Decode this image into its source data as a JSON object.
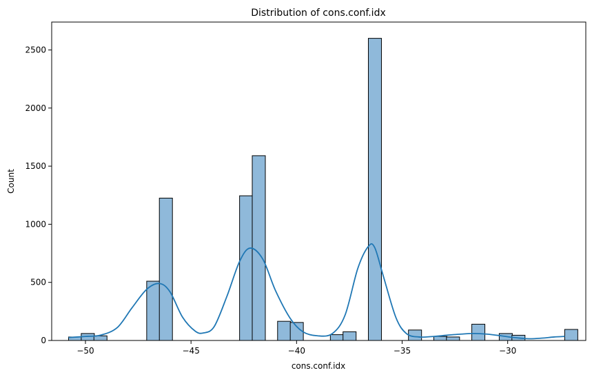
{
  "chart_data": {
    "type": "bar",
    "title": "Distribution of cons.conf.idx",
    "xlabel": "cons.conf.idx",
    "ylabel": "Count",
    "xlim": [
      -51.6,
      -26.3
    ],
    "ylim": [
      0,
      2740
    ],
    "xticks": [
      -50,
      -45,
      -40,
      -35,
      -30
    ],
    "yticks": [
      0,
      500,
      1000,
      1500,
      2000,
      2500
    ],
    "bin_width": 0.62,
    "bins": [
      {
        "x0": -50.8,
        "count": 30
      },
      {
        "x0": -50.2,
        "count": 60
      },
      {
        "x0": -49.6,
        "count": 40
      },
      {
        "x0": -47.1,
        "count": 510
      },
      {
        "x0": -46.5,
        "count": 1225
      },
      {
        "x0": -42.7,
        "count": 1245
      },
      {
        "x0": -42.1,
        "count": 1590
      },
      {
        "x0": -40.9,
        "count": 165
      },
      {
        "x0": -40.3,
        "count": 155
      },
      {
        "x0": -38.4,
        "count": 50
      },
      {
        "x0": -37.8,
        "count": 75
      },
      {
        "x0": -36.6,
        "count": 2600
      },
      {
        "x0": -34.7,
        "count": 90
      },
      {
        "x0": -33.5,
        "count": 35
      },
      {
        "x0": -32.9,
        "count": 30
      },
      {
        "x0": -31.7,
        "count": 140
      },
      {
        "x0": -30.4,
        "count": 60
      },
      {
        "x0": -29.8,
        "count": 45
      },
      {
        "x0": -27.3,
        "count": 95
      }
    ],
    "kde": {
      "x": [
        -50.8,
        -50.0,
        -49.3,
        -48.5,
        -47.8,
        -47.1,
        -46.5,
        -46.0,
        -45.4,
        -44.8,
        -44.4,
        -43.9,
        -43.3,
        -42.7,
        -42.2,
        -41.6,
        -41.0,
        -40.3,
        -39.7,
        -39.0,
        -38.3,
        -37.7,
        -37.1,
        -36.6,
        -36.3,
        -35.9,
        -35.3,
        -34.8,
        -34.2,
        -33.5,
        -32.9,
        -32.2,
        -31.6,
        -31.0,
        -30.3,
        -29.7,
        -29.0,
        -28.4,
        -27.8,
        -27.3
      ],
      "y": [
        25,
        35,
        45,
        110,
        280,
        440,
        490,
        420,
        200,
        80,
        65,
        120,
        380,
        680,
        795,
        700,
        430,
        190,
        75,
        40,
        60,
        220,
        620,
        810,
        800,
        560,
        200,
        60,
        30,
        35,
        45,
        55,
        60,
        55,
        40,
        25,
        15,
        20,
        30,
        35
      ]
    },
    "colors": {
      "bar_fill": "#8fb9da",
      "bar_edge": "#000000",
      "kde_line": "#1f77b4"
    },
    "grid": false,
    "legend": "none"
  }
}
